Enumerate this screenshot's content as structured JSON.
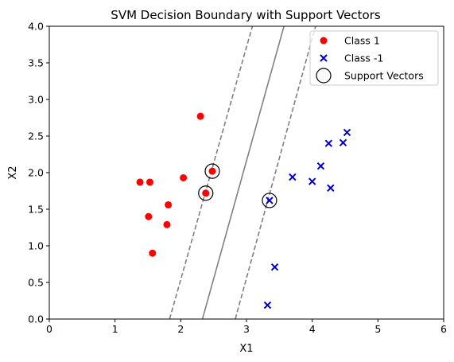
{
  "chart_data": {
    "type": "scatter",
    "title": "SVM Decision Boundary with Support Vectors",
    "xlabel": "X1",
    "ylabel": "X2",
    "xlim": [
      0,
      6
    ],
    "ylim": [
      0,
      4
    ],
    "xticks": [
      0,
      1,
      2,
      3,
      4,
      5,
      6
    ],
    "yticks": [
      0.0,
      0.5,
      1.0,
      1.5,
      2.0,
      2.5,
      3.0,
      3.5,
      4.0
    ],
    "ytick_labels": [
      "0.0",
      "0.5",
      "1.0",
      "1.5",
      "2.0",
      "2.5",
      "3.0",
      "3.5",
      "4.0"
    ],
    "grid": false,
    "legend_position": "top-right",
    "series": [
      {
        "name": "Class 1",
        "marker": "circle",
        "color": "#ff0000",
        "points": [
          [
            2.3,
            2.77
          ],
          [
            2.48,
            2.02
          ],
          [
            2.04,
            1.93
          ],
          [
            1.38,
            1.87
          ],
          [
            1.53,
            1.87
          ],
          [
            2.38,
            1.72
          ],
          [
            1.81,
            1.56
          ],
          [
            1.51,
            1.4
          ],
          [
            1.79,
            1.29
          ],
          [
            1.57,
            0.9
          ]
        ]
      },
      {
        "name": "Class -1",
        "marker": "x",
        "color": "#0000cc",
        "points": [
          [
            4.53,
            2.55
          ],
          [
            4.25,
            2.4
          ],
          [
            4.47,
            2.41
          ],
          [
            4.13,
            2.09
          ],
          [
            3.7,
            1.94
          ],
          [
            4.0,
            1.88
          ],
          [
            4.28,
            1.79
          ],
          [
            3.35,
            1.62
          ],
          [
            3.43,
            0.71
          ],
          [
            3.32,
            0.19
          ]
        ]
      },
      {
        "name": "Support Vectors",
        "marker": "ring",
        "color": "#000000",
        "points": [
          [
            2.48,
            2.02
          ],
          [
            2.38,
            1.72
          ],
          [
            3.35,
            1.62
          ]
        ]
      }
    ],
    "lines": [
      {
        "role": "decision-boundary",
        "style": "solid",
        "color": "#808080",
        "points": [
          [
            2.33,
            0.0
          ],
          [
            3.57,
            4.0
          ]
        ]
      },
      {
        "role": "margin",
        "style": "dashed",
        "color": "#808080",
        "points": [
          [
            1.83,
            0.0
          ],
          [
            3.09,
            4.0
          ]
        ]
      },
      {
        "role": "margin",
        "style": "dashed",
        "color": "#808080",
        "points": [
          [
            2.83,
            0.0
          ],
          [
            4.05,
            4.0
          ]
        ]
      }
    ]
  }
}
